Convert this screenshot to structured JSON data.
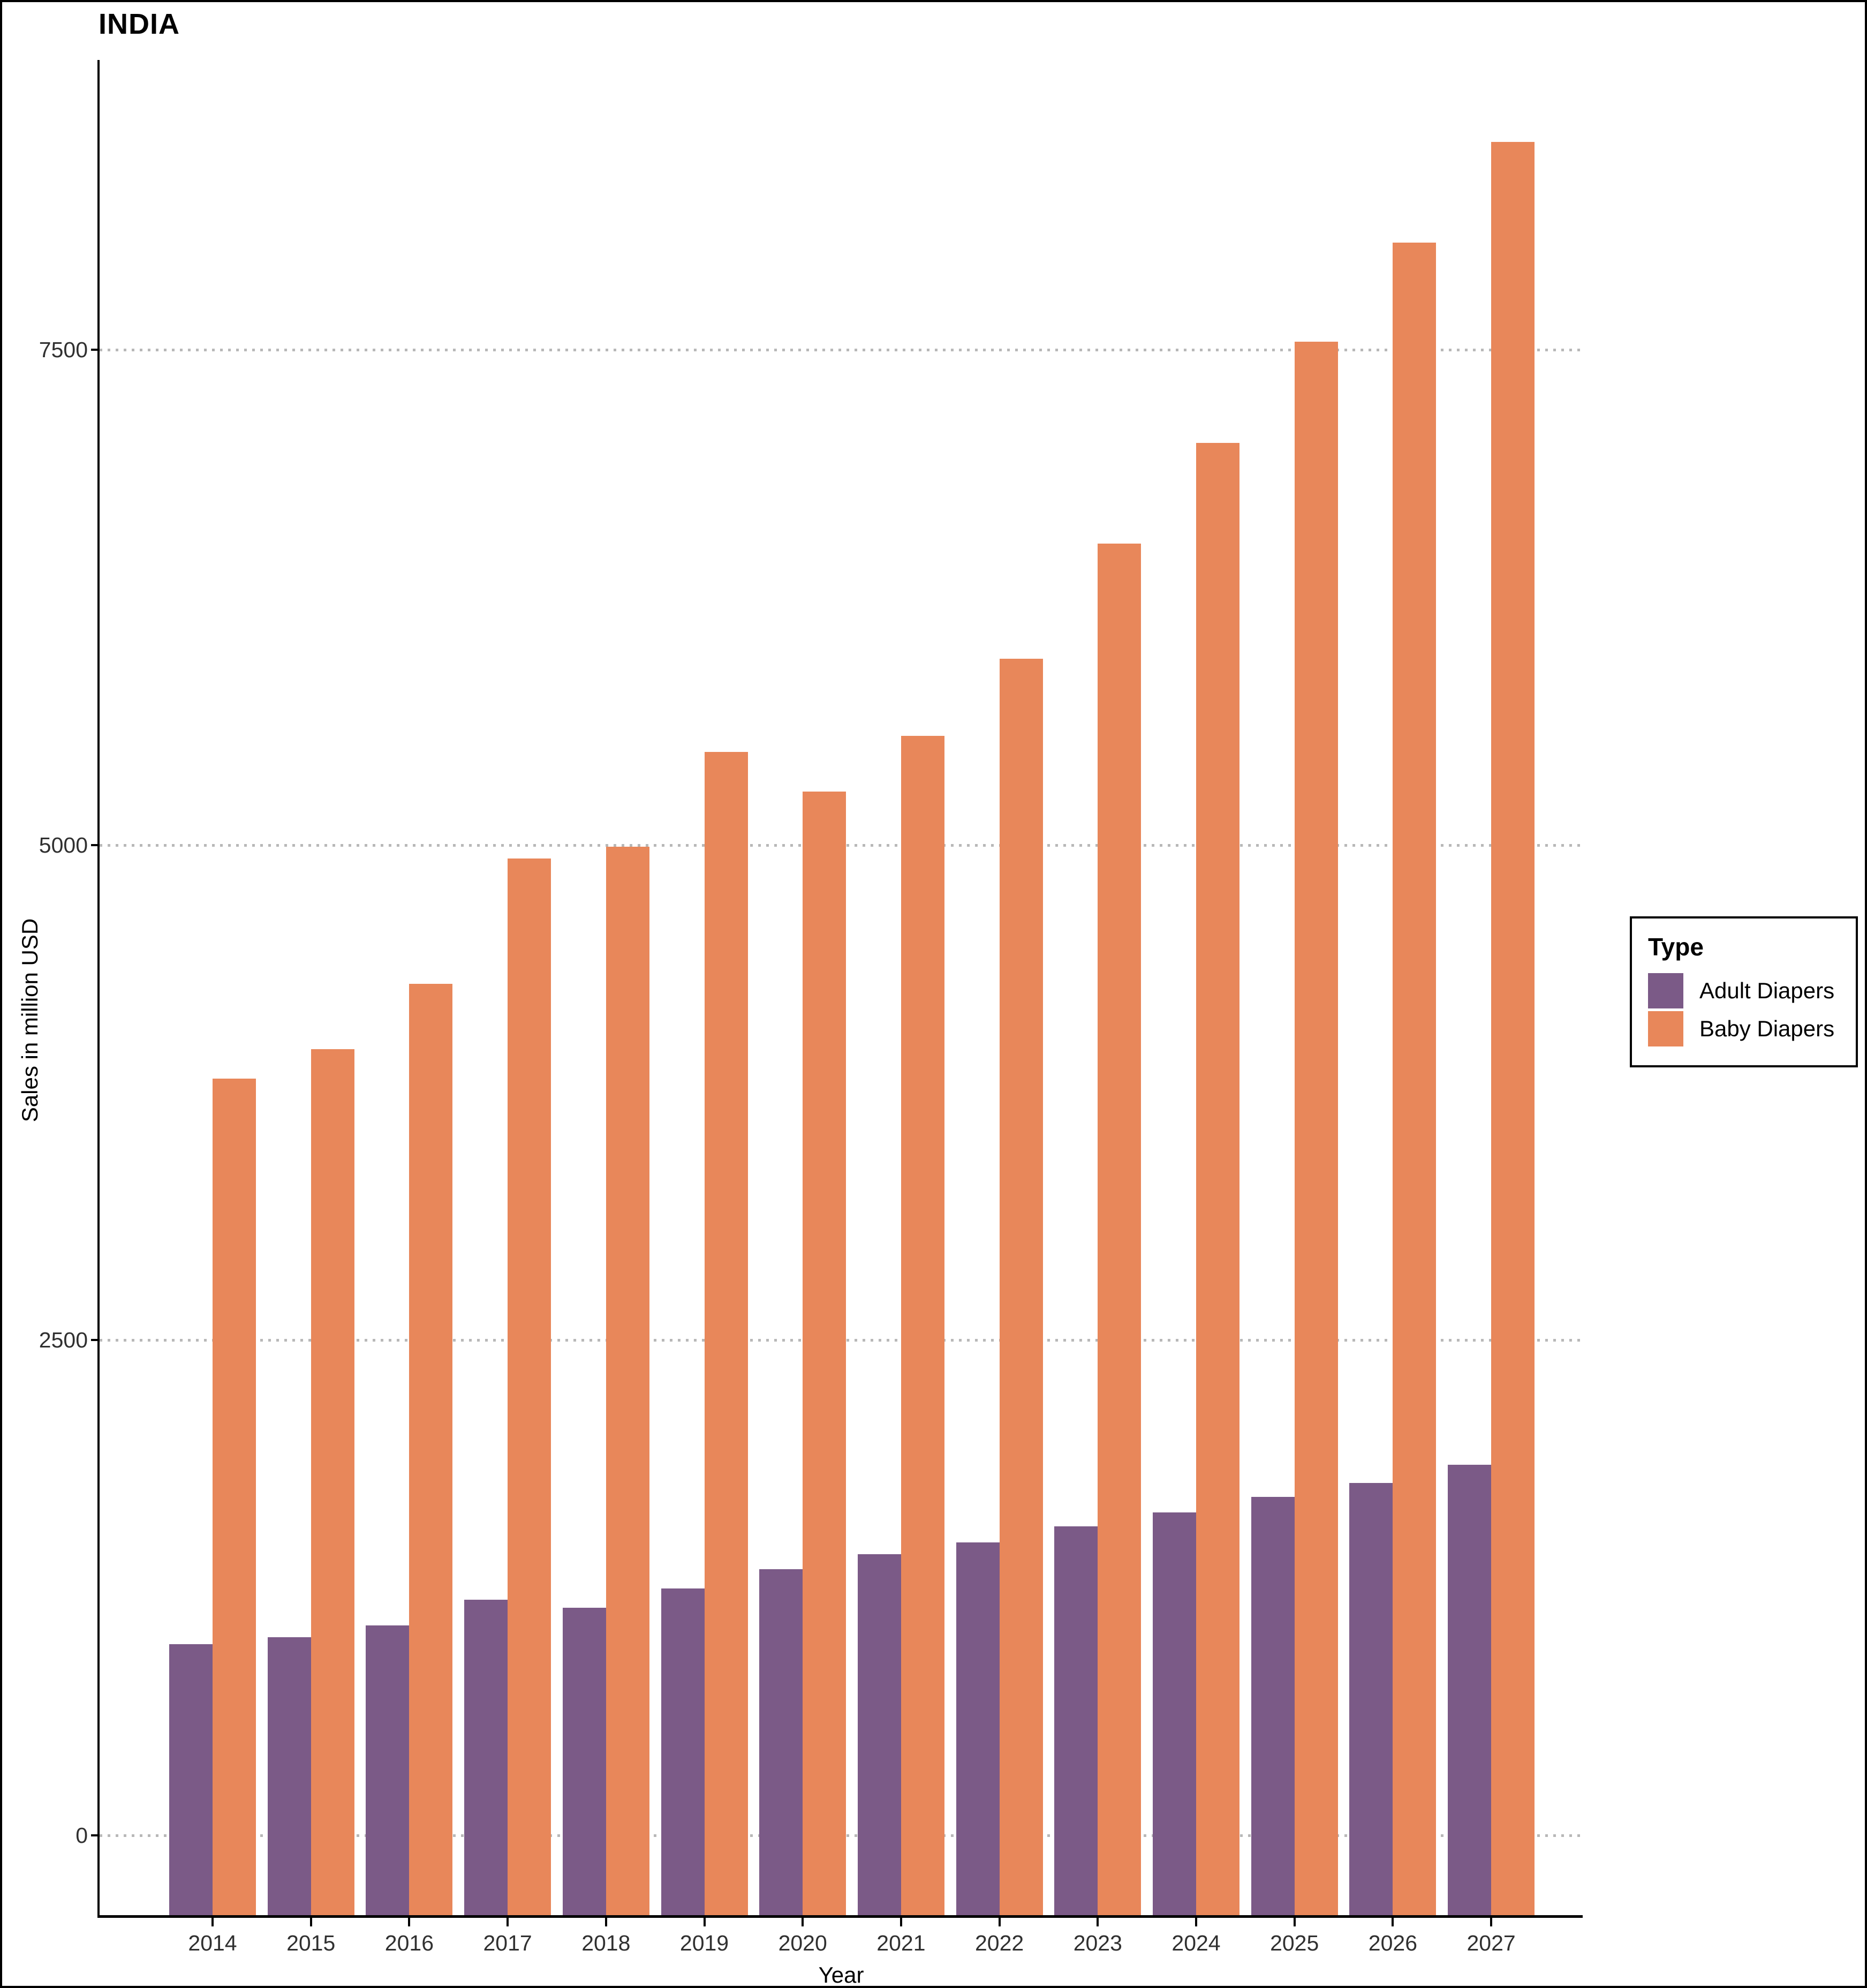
{
  "page": {
    "title": "INDIA"
  },
  "axes": {
    "x_title": "Year",
    "y_title": "Sales in million USD",
    "y_tick_labels": [
      "0",
      "2500",
      "5000",
      "7500"
    ]
  },
  "legend": {
    "title": "Type",
    "items": [
      {
        "label": "Adult Diapers",
        "color": "#7B5A87"
      },
      {
        "label": "Baby Diapers",
        "color": "#E8875A"
      }
    ]
  },
  "chart_data": {
    "type": "bar",
    "title": "INDIA",
    "xlabel": "Year",
    "ylabel": "Sales in million USD",
    "categories": [
      "2014",
      "2015",
      "2016",
      "2017",
      "2018",
      "2019",
      "2020",
      "2021",
      "2022",
      "2023",
      "2024",
      "2025",
      "2026",
      "2027"
    ],
    "series": [
      {
        "name": "Adult Diapers",
        "color": "#7B5A87",
        "values": [
          965,
          1000,
          1060,
          1190,
          1150,
          1245,
          1345,
          1420,
          1480,
          1560,
          1630,
          1710,
          1780,
          1870
        ]
      },
      {
        "name": "Baby Diapers",
        "color": "#E8875A",
        "values": [
          3820,
          3970,
          4300,
          4930,
          4990,
          5470,
          5270,
          5550,
          5940,
          6520,
          7030,
          7540,
          8040,
          8550
        ]
      }
    ],
    "y_ticks": [
      0,
      2500,
      5000,
      7500
    ],
    "ylim": [
      0,
      8800
    ],
    "grid": "horizontal-dotted-at-major-ticks",
    "legend_position": "right",
    "bar_baseline": "bars extend to panel bottom below the 0 gridline",
    "colors": {
      "grid": "#B8B8B8",
      "axis": "#000000",
      "background": "#FFFFFF"
    }
  }
}
